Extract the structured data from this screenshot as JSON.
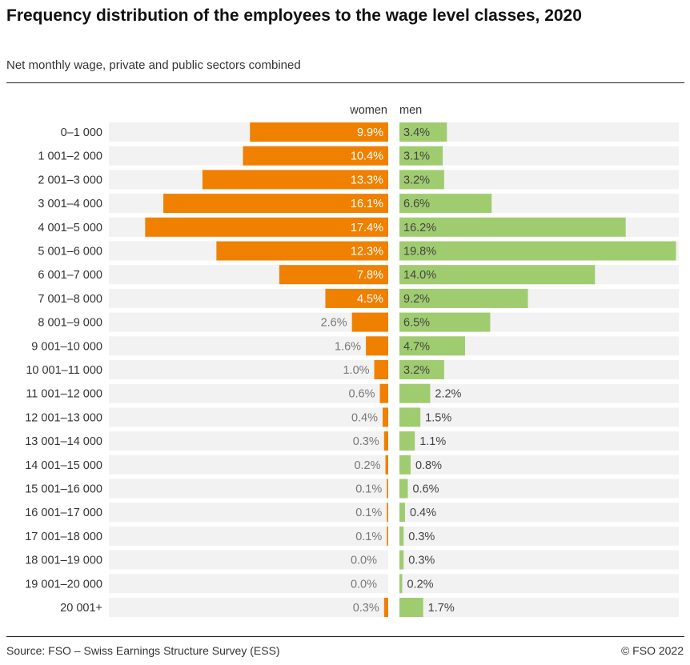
{
  "title": "Frequency distribution of the employees to the wage level classes, 2020",
  "subtitle": "Net monthly wage, private and public sectors combined",
  "footer": {
    "source": "Source: FSO – Swiss Earnings Structure Survey (ESS)",
    "copyright": "© FSO 2022"
  },
  "chart_data": {
    "type": "bar",
    "orientation": "horizontal-butterfly",
    "unit": "%",
    "xlim": [
      0,
      20
    ],
    "grid": false,
    "colors": {
      "women": "#f08000",
      "men": "#a0cc70",
      "track": "#f2f2f2"
    },
    "categories": [
      "0–1 000",
      "1 001–2 000",
      "2 001–3 000",
      "3 001–4 000",
      "4 001–5 000",
      "5 001–6 000",
      "6 001–7 000",
      "7 001–8 000",
      "8 001–9 000",
      "9 001–10 000",
      "10 001–11 000",
      "11 001–12 000",
      "12 001–13 000",
      "13 001–14 000",
      "14 001–15 000",
      "15 001–16 000",
      "16 001–17 000",
      "17 001–18 000",
      "18 001–19 000",
      "19 001–20 000",
      "20 001+"
    ],
    "series": [
      {
        "name": "women",
        "values": [
          9.9,
          10.4,
          13.3,
          16.1,
          17.4,
          12.3,
          7.8,
          4.5,
          2.6,
          1.6,
          1.0,
          0.6,
          0.4,
          0.3,
          0.2,
          0.1,
          0.1,
          0.1,
          0.0,
          0.0,
          0.3
        ]
      },
      {
        "name": "men",
        "values": [
          3.4,
          3.1,
          3.2,
          6.6,
          16.2,
          19.8,
          14.0,
          9.2,
          6.5,
          4.7,
          3.2,
          2.2,
          1.5,
          1.1,
          0.8,
          0.6,
          0.4,
          0.3,
          0.3,
          0.2,
          1.7
        ]
      }
    ]
  }
}
